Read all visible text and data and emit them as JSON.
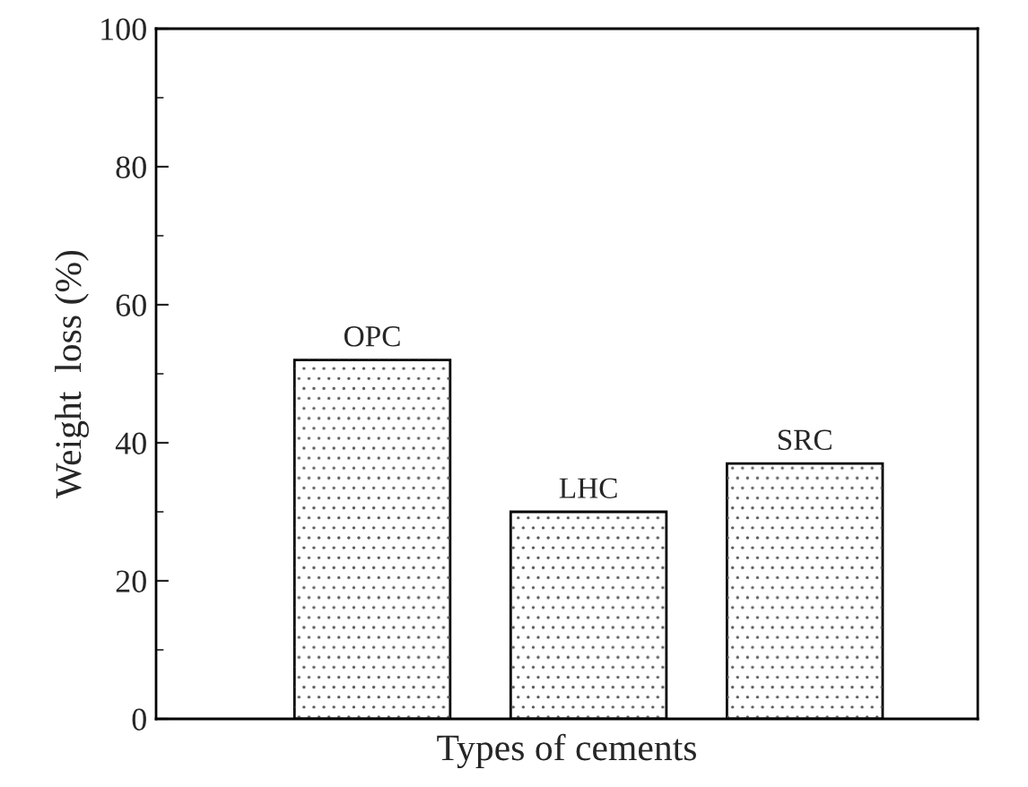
{
  "chart_data": {
    "type": "bar",
    "xlabel": "Types of cements",
    "ylabel": "Weight  loss (%)",
    "categories": [
      "OPC",
      "LHC",
      "SRC"
    ],
    "values": [
      52,
      30,
      37
    ],
    "color": "#ffffff",
    "ylim": [
      0,
      100
    ],
    "yticks": [
      0,
      20,
      40,
      60,
      80,
      100
    ],
    "tick_labels": "y",
    "grid": false,
    "legend": false
  }
}
